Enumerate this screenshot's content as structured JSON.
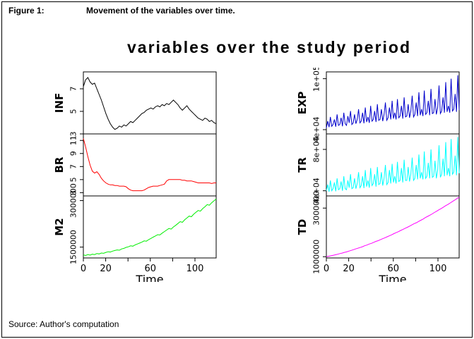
{
  "figure": {
    "caption_label": "Figure 1:",
    "caption_text": "Movement of the variables over time.",
    "title": "variables over the study period",
    "source": "Source: Author's computation"
  },
  "chart_data": {
    "type": "line",
    "title": "variables over the study period",
    "xlabel": "Time",
    "x_range": [
      0,
      119
    ],
    "x_ticks": [
      0,
      20,
      40,
      60,
      80,
      100
    ],
    "x_tick_labels": [
      "0",
      "20",
      "",
      "60",
      "",
      "100"
    ],
    "legend": "none",
    "grid": false,
    "groups": [
      {
        "name": "left",
        "panels": [
          {
            "name": "INF",
            "color": "#000000",
            "ylim": [
              3,
              8.5
            ],
            "y_ticks": [
              3,
              5,
              7
            ],
            "y_tick_labels": [
              "3",
              "5",
              "7"
            ],
            "values": [
              7.2,
              7.8,
              8.0,
              7.6,
              7.4,
              7.5,
              7.0,
              6.5,
              6.0,
              5.4,
              4.8,
              4.3,
              3.9,
              3.6,
              3.4,
              3.5,
              3.7,
              3.6,
              3.8,
              3.7,
              3.9,
              4.1,
              4.0,
              4.2,
              4.4,
              4.6,
              4.8,
              4.9,
              5.1,
              5.2,
              5.3,
              5.2,
              5.4,
              5.5,
              5.4,
              5.6,
              5.5,
              5.7,
              5.6,
              5.8,
              6.0,
              5.8,
              5.6,
              5.3,
              5.1,
              5.3,
              5.5,
              5.2,
              5.0,
              4.8,
              4.6,
              4.4,
              4.3,
              4.2,
              4.4,
              4.3,
              4.1,
              4.2,
              4.0,
              3.9
            ]
          },
          {
            "name": "BR",
            "color": "#ff0000",
            "ylim": [
              2.5,
              12
            ],
            "y_ticks": [
              3,
              5,
              7,
              9,
              11
            ],
            "y_tick_labels": [
              "3",
              "5",
              "7",
              "9",
              "11"
            ],
            "values": [
              11.3,
              10.0,
              8.5,
              7.2,
              6.3,
              6.0,
              6.2,
              5.8,
              5.2,
              4.8,
              4.5,
              4.3,
              4.2,
              4.2,
              4.1,
              4.1,
              4.0,
              4.0,
              4.0,
              3.9,
              3.6,
              3.4,
              3.3,
              3.3,
              3.3,
              3.3,
              3.3,
              3.4,
              3.6,
              3.8,
              3.9,
              4.0,
              4.0,
              4.0,
              4.1,
              4.2,
              4.3,
              4.8,
              5.0,
              5.0,
              5.0,
              5.0,
              5.0,
              5.0,
              4.9,
              4.9,
              4.8,
              4.8,
              4.8,
              4.7,
              4.6,
              4.5,
              4.5,
              4.5,
              4.5,
              4.5,
              4.5,
              4.4,
              4.5,
              4.5
            ]
          },
          {
            "name": "M2",
            "color": "#00ee00",
            "ylim": [
              1150000,
              3150000
            ],
            "y_ticks": [
              1500000,
              3000000
            ],
            "y_tick_labels": [
              "1500000",
              "3000000"
            ],
            "values": [
              1250000,
              1230000,
              1260000,
              1240000,
              1270000,
              1260000,
              1290000,
              1280000,
              1310000,
              1300000,
              1330000,
              1350000,
              1340000,
              1370000,
              1390000,
              1410000,
              1400000,
              1440000,
              1460000,
              1490000,
              1510000,
              1540000,
              1530000,
              1570000,
              1600000,
              1630000,
              1660000,
              1700000,
              1690000,
              1740000,
              1780000,
              1820000,
              1860000,
              1900000,
              1890000,
              1950000,
              2000000,
              2050000,
              2100000,
              2080000,
              2150000,
              2200000,
              2260000,
              2320000,
              2300000,
              2380000,
              2440000,
              2500000,
              2480000,
              2560000,
              2620000,
              2680000,
              2660000,
              2740000,
              2800000,
              2870000,
              2850000,
              2930000,
              2990000,
              3050000
            ]
          }
        ]
      },
      {
        "name": "right",
        "panels": [
          {
            "name": "EXP",
            "color": "#0000cc",
            "ylim": [
              35000,
              108000
            ],
            "y_ticks": [
              40000,
              100000
            ],
            "y_tick_labels": [
              "4e+04",
              "1e+05"
            ],
            "values": [
              42000,
              50000,
              43000,
              55000,
              44000,
              46000,
              52000,
              43500,
              58000,
              45000,
              46000,
              54000,
              44000,
              60000,
              47000,
              45000,
              56000,
              48000,
              62000,
              46000,
              48000,
              58000,
              47000,
              52000,
              64000,
              48000,
              50000,
              60000,
              47500,
              66000,
              49000,
              55000,
              48000,
              68000,
              50000,
              52000,
              62000,
              49000,
              70000,
              51000,
              52000,
              64000,
              50000,
              58000,
              72000,
              51000,
              54000,
              66000,
              52000,
              74000,
              53000,
              60000,
              52000,
              76000,
              54000,
              56000,
              68000,
              53000,
              78000,
              55000,
              56000,
              70000,
              54000,
              62000,
              80000,
              55000,
              58000,
              72000,
              56000,
              84000,
              57000,
              64000,
              56000,
              86000,
              58000,
              60000,
              74000,
              57000,
              88000,
              59000,
              60000,
              76000,
              58000,
              66000,
              92000,
              59000,
              62000,
              78000,
              60000,
              96000,
              61000,
              68000,
              60000,
              100000,
              62000,
              64000,
              82000,
              61000,
              104000,
              63000
            ]
          },
          {
            "name": "TR",
            "color": "#00ffff",
            "ylim": [
              35000,
              95000
            ],
            "y_ticks": [
              40000,
              80000
            ],
            "y_tick_labels": [
              "4e+04",
              "8e+04"
            ],
            "values": [
              40000,
              46000,
              39000,
              50000,
              40000,
              42000,
              48000,
              39500,
              52000,
              41000,
              42000,
              49000,
              40000,
              54000,
              42000,
              41000,
              50000,
              43000,
              56000,
              42000,
              43000,
              52000,
              42000,
              47000,
              58000,
              43000,
              45000,
              54000,
              42500,
              60000,
              44000,
              50000,
              43000,
              62000,
              45000,
              47000,
              56000,
              44000,
              63000,
              46000,
              47000,
              58000,
              45000,
              52000,
              65000,
              46000,
              48000,
              60000,
              47000,
              66000,
              48000,
              54000,
              47000,
              68000,
              49000,
              50000,
              62000,
              48000,
              70000,
              50000,
              50000,
              63000,
              49000,
              56000,
              72000,
              50000,
              52000,
              65000,
              51000,
              75000,
              52000,
              58000,
              51000,
              78000,
              52000,
              54000,
              67000,
              52000,
              80000,
              53000,
              54000,
              69000,
              52000,
              60000,
              84000,
              53000,
              56000,
              71000,
              54000,
              87000,
              55000,
              62000,
              54000,
              90000,
              56000,
              58000,
              74000,
              55000,
              92000,
              57000
            ]
          },
          {
            "name": "TD",
            "color": "#ff00ff",
            "ylim": [
              950000,
              3500000
            ],
            "y_ticks": [
              1000000,
              3000000
            ],
            "y_tick_labels": [
              "1000000",
              "3000000"
            ],
            "values": [
              1000000,
              1020000,
              1040000,
              1060000,
              1080000,
              1100000,
              1130000,
              1150000,
              1180000,
              1200000,
              1230000,
              1260000,
              1290000,
              1320000,
              1350000,
              1380000,
              1410000,
              1450000,
              1480000,
              1520000,
              1550000,
              1590000,
              1630000,
              1660000,
              1700000,
              1740000,
              1780000,
              1820000,
              1860000,
              1900000,
              1950000,
              1990000,
              2030000,
              2080000,
              2120000,
              2170000,
              2210000,
              2260000,
              2310000,
              2360000,
              2400000,
              2450000,
              2500000,
              2550000,
              2610000,
              2660000,
              2710000,
              2760000,
              2820000,
              2870000,
              2930000,
              2980000,
              3040000,
              3100000,
              3150000,
              3210000,
              3270000,
              3330000,
              3390000,
              3450000
            ]
          }
        ]
      }
    ]
  }
}
